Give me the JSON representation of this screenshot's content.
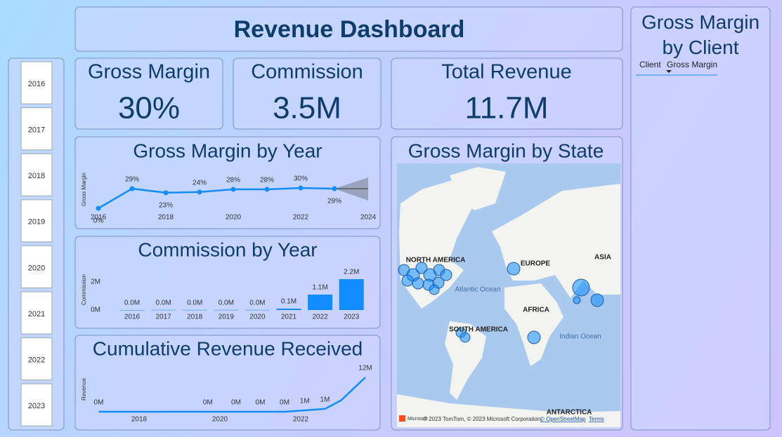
{
  "header": {
    "title": "Revenue Dashboard"
  },
  "slicer": {
    "items": [
      "2016",
      "2017",
      "2018",
      "2019",
      "2020",
      "2021",
      "2022",
      "2023"
    ]
  },
  "cards": [
    {
      "label": "Gross Margin",
      "value": "30%"
    },
    {
      "label": "Commission",
      "value": "3.5M"
    },
    {
      "label": "Total Revenue",
      "value": "11.7M"
    }
  ],
  "chart_data": [
    {
      "type": "line",
      "title": "Gross Margin by Year",
      "y_label": "Gross Margin",
      "x": [
        2016,
        2017,
        2018,
        2019,
        2020,
        2021,
        2022,
        2023
      ],
      "values": [
        0,
        29,
        23,
        24,
        28,
        28,
        30,
        29
      ],
      "value_labels": [
        "0%",
        "29%",
        "23%",
        "24%",
        "28%",
        "28%",
        "30%",
        "29%"
      ],
      "xlim": [
        2016,
        2024
      ],
      "xticks": [
        2016,
        2018,
        2020,
        2022,
        2024
      ],
      "ylim": [
        0,
        30
      ],
      "markers": true,
      "color": "#118dff"
    },
    {
      "type": "bar",
      "title": "Commission by Year",
      "y_label": "Commission",
      "categories": [
        "2016",
        "2017",
        "2018",
        "2019",
        "2020",
        "2021",
        "2022",
        "2023"
      ],
      "values": [
        0,
        0.01,
        0.01,
        0.01,
        0.01,
        0.1,
        1.1,
        2.2
      ],
      "value_labels": [
        "0.0M",
        "0.0M",
        "0.0M",
        "0.0M",
        "0.0M",
        "0.1M",
        "1.1M",
        "2.2M"
      ],
      "ylim": [
        0,
        2.2
      ],
      "yticks": [
        {
          "value": 0,
          "label": "0M"
        },
        {
          "value": 2,
          "label": "2M"
        }
      ],
      "color": "#118dff"
    },
    {
      "type": "line",
      "title": "Cumulative Revenue Received",
      "y_label": "Revenue",
      "x": [
        2017,
        2019.7,
        2020.4,
        2021,
        2021.6,
        2022.1,
        2022.6,
        2023,
        2023.3,
        2023.6
      ],
      "values": [
        0,
        0,
        0,
        0,
        0,
        0.5,
        1,
        4,
        8,
        12
      ],
      "value_labels": [
        "0M",
        "0M",
        "0M",
        "0M",
        "0M",
        "1M",
        "1M",
        null,
        null,
        "12M"
      ],
      "xlim": [
        2017,
        2023.7
      ],
      "xticks": [
        2018,
        2020,
        2022
      ],
      "ylim": [
        0,
        12
      ],
      "markers": false,
      "color": "#118dff"
    }
  ],
  "map": {
    "title": "Gross Margin by State",
    "labels": [
      "NORTH AMERICA",
      "EUROPE",
      "ASIA",
      "AFRICA",
      "SOUTH AMERICA",
      "ANTARCTICA",
      "Atlantic Ocean",
      "Indian Ocean"
    ],
    "attribution": [
      "Microsoft",
      "© 2023 TomTom, © 2023 Microsoft Corporation,",
      "© OpenStreetMap",
      "Terms"
    ]
  },
  "client_table": {
    "title": "Gross Margin by Client",
    "columns": [
      "Client",
      "Gross Margin"
    ]
  }
}
